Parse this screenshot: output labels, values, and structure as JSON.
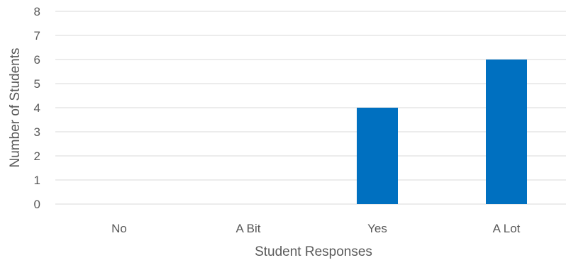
{
  "chart_data": {
    "type": "bar",
    "categories": [
      "No",
      "A Bit",
      "Yes",
      "A Lot"
    ],
    "values": [
      0,
      0,
      4,
      6
    ],
    "xlabel": "Student Responses",
    "ylabel": "Number of Students",
    "ylim": [
      0,
      8
    ],
    "yticks": [
      0,
      1,
      2,
      3,
      4,
      5,
      6,
      7,
      8
    ],
    "grid": true,
    "legend": "none",
    "bar_color": "#0070C0",
    "gridline_color": "#D9D9D9",
    "text_color": "#595959"
  }
}
